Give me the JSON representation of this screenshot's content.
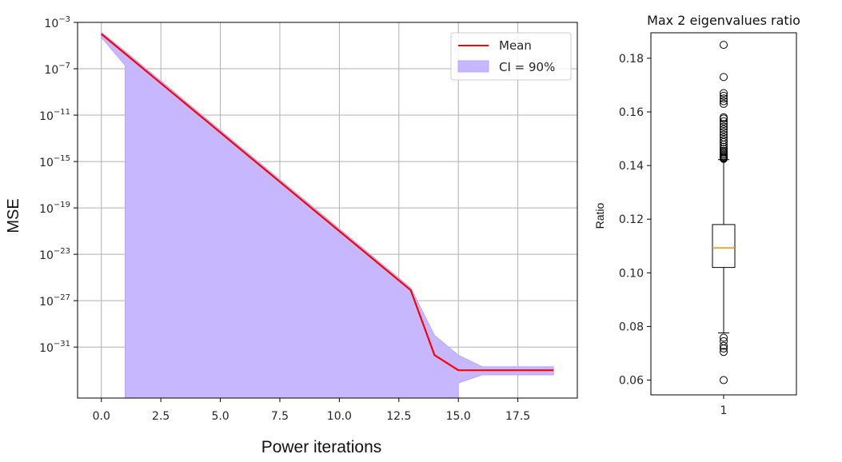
{
  "chart_data": [
    {
      "type": "line",
      "title": "",
      "xlabel": "Power iterations",
      "ylabel": "MSE",
      "yscale": "log",
      "grid": true,
      "legend_position": "top-right",
      "xlim": [
        -1.0,
        20.0
      ],
      "ylim": [
        4e-36,
        0.001
      ],
      "xticks": [
        {
          "value": 0.0,
          "label": "0.0"
        },
        {
          "value": 2.5,
          "label": "2.5"
        },
        {
          "value": 5.0,
          "label": "5.0"
        },
        {
          "value": 7.5,
          "label": "7.5"
        },
        {
          "value": 10.0,
          "label": "10.0"
        },
        {
          "value": 12.5,
          "label": "12.5"
        },
        {
          "value": 15.0,
          "label": "15.0"
        },
        {
          "value": 17.5,
          "label": "17.5"
        }
      ],
      "yticks": [
        {
          "value": 0.001,
          "base": "10",
          "exp": "−3"
        },
        {
          "value": 1e-07,
          "base": "10",
          "exp": "−7"
        },
        {
          "value": 1e-11,
          "base": "10",
          "exp": "−11"
        },
        {
          "value": 1e-15,
          "base": "10",
          "exp": "−15"
        },
        {
          "value": 1e-19,
          "base": "10",
          "exp": "−19"
        },
        {
          "value": 1e-23,
          "base": "10",
          "exp": "−23"
        },
        {
          "value": 1e-27,
          "base": "10",
          "exp": "−27"
        },
        {
          "value": 1e-31,
          "base": "10",
          "exp": "−31"
        }
      ],
      "series": [
        {
          "name": "Mean",
          "color": "#ff0000",
          "x": [
            0,
            1,
            2,
            3,
            4,
            5,
            6,
            7,
            8,
            9,
            10,
            11,
            12,
            13,
            14,
            15,
            16,
            17,
            18,
            19
          ],
          "y": [
            0.0001,
            2e-06,
            4e-08,
            8e-10,
            1.6e-11,
            3.2e-13,
            6.3e-15,
            1.26e-16,
            2.5e-18,
            5e-20,
            1e-21,
            2e-23,
            4e-25,
            8e-27,
            2e-32,
            1e-33,
            1e-33,
            1e-33,
            1e-33,
            1e-33
          ]
        }
      ],
      "band": {
        "name": "CI = 90%",
        "color": "#c6b7ff",
        "edge_color": "#b9a8ff",
        "x": [
          0,
          1,
          1,
          2,
          3,
          4,
          5,
          6,
          7,
          8,
          9,
          10,
          11,
          12,
          13,
          14,
          15,
          15,
          16,
          17,
          18,
          19
        ],
        "upper": [
          0.00014,
          3.2e-06,
          3.2e-06,
          6.3e-08,
          1.3e-09,
          2.5e-11,
          5e-13,
          1e-14,
          2e-16,
          4e-18,
          8e-20,
          1.6e-21,
          3.2e-23,
          6.3e-25,
          1.3e-26,
          1e-30,
          2e-32,
          2e-32,
          2e-33,
          2e-33,
          2e-33,
          2e-33
        ],
        "lower": [
          5e-05,
          2e-07,
          4e-36,
          4e-36,
          4e-36,
          4e-36,
          4e-36,
          4e-36,
          4e-36,
          4e-36,
          4e-36,
          4e-36,
          4e-36,
          4e-36,
          4e-36,
          4e-36,
          4e-36,
          8e-35,
          4e-34,
          4e-34,
          4e-34,
          4e-34
        ]
      }
    },
    {
      "type": "box",
      "title": "Max 2 eigenvalues ratio",
      "xlabel": "",
      "ylabel": "Ratio",
      "grid": false,
      "ylim": [
        0.0545,
        0.1895
      ],
      "xticks": [
        {
          "value": 1,
          "label": "1"
        }
      ],
      "yticks": [
        {
          "value": 0.06,
          "label": "0.06"
        },
        {
          "value": 0.08,
          "label": "0.08"
        },
        {
          "value": 0.1,
          "label": "0.10"
        },
        {
          "value": 0.12,
          "label": "0.12"
        },
        {
          "value": 0.14,
          "label": "0.14"
        },
        {
          "value": 0.16,
          "label": "0.16"
        },
        {
          "value": 0.18,
          "label": "0.18"
        }
      ],
      "median_color": "#ff8c00",
      "box": {
        "category": "1",
        "q1": 0.102,
        "median": 0.1093,
        "q3": 0.118,
        "whisker_low": 0.0776,
        "whisker_high": 0.1422,
        "outliers": [
          0.06,
          0.0705,
          0.0718,
          0.0728,
          0.0745,
          0.0758,
          0.1425,
          0.1428,
          0.1431,
          0.1435,
          0.144,
          0.1445,
          0.145,
          0.1455,
          0.1462,
          0.147,
          0.1478,
          0.1487,
          0.1495,
          0.1505,
          0.1515,
          0.1525,
          0.1535,
          0.1545,
          0.1555,
          0.1565,
          0.1575,
          0.158,
          0.163,
          0.164,
          0.165,
          0.166,
          0.167,
          0.173,
          0.185
        ]
      }
    }
  ]
}
